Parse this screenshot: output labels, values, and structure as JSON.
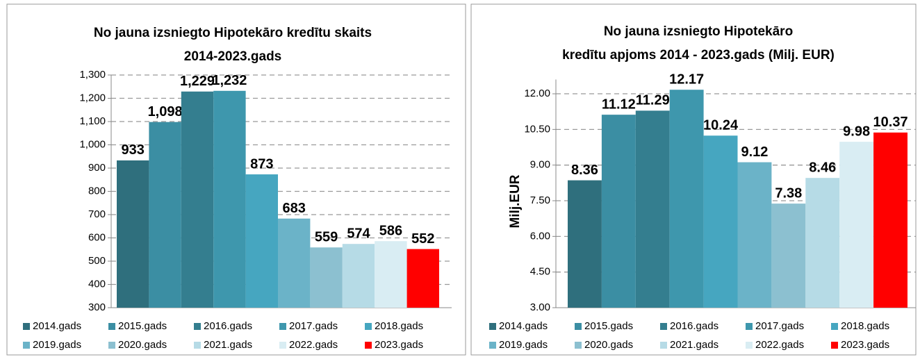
{
  "chart_data": [
    {
      "type": "bar",
      "title": [
        "No jauna izsniegto Hipotekāro kredītu skaits",
        "2014-2023.gads"
      ],
      "series": [
        {
          "name": "2014.gads",
          "color": "#2f6f7d",
          "values": [
            933
          ],
          "value_labels": [
            "933"
          ]
        },
        {
          "name": "2015.gads",
          "color": "#3b8ea3",
          "values": [
            1098
          ],
          "value_labels": [
            "1,098"
          ]
        },
        {
          "name": "2016.gads",
          "color": "#347e8f",
          "values": [
            1229
          ],
          "value_labels": [
            "1,229"
          ]
        },
        {
          "name": "2017.gads",
          "color": "#3e97ad",
          "values": [
            1232
          ],
          "value_labels": [
            "1,232"
          ]
        },
        {
          "name": "2018.gads",
          "color": "#46a6c0",
          "values": [
            873
          ],
          "value_labels": [
            "873"
          ]
        },
        {
          "name": "2019.gads",
          "color": "#6bb3c8",
          "values": [
            683
          ],
          "value_labels": [
            "683"
          ]
        },
        {
          "name": "2020.gads",
          "color": "#8cc0d0",
          "values": [
            559
          ],
          "value_labels": [
            "559"
          ]
        },
        {
          "name": "2021.gads",
          "color": "#b6dbe6",
          "values": [
            574
          ],
          "value_labels": [
            "574"
          ]
        },
        {
          "name": "2022.gads",
          "color": "#d9edf3",
          "values": [
            586
          ],
          "value_labels": [
            "586"
          ]
        },
        {
          "name": "2023.gads",
          "color": "#ff0000",
          "values": [
            552
          ],
          "value_labels": [
            "552"
          ]
        }
      ],
      "ylim": [
        300,
        1300
      ],
      "yticks": [
        300,
        400,
        500,
        600,
        700,
        800,
        900,
        {
          "value": 1000,
          "label": "1,000"
        },
        {
          "value": 1100,
          "label": "1,100"
        },
        {
          "value": 1200,
          "label": "1,200"
        },
        {
          "value": 1300,
          "label": "1,300"
        }
      ],
      "grid": true,
      "legend": "bottom"
    },
    {
      "type": "bar",
      "title": [
        "No jauna izsniegto Hipotekāro",
        "kredītu apjoms 2014 - 2023.gads (Milj. EUR)"
      ],
      "y_label": "Milj.EUR",
      "series": [
        {
          "name": "2014.gads",
          "color": "#2f6f7d",
          "values": [
            8.36
          ]
        },
        {
          "name": "2015.gads",
          "color": "#3b8ea3",
          "values": [
            11.12
          ]
        },
        {
          "name": "2016.gads",
          "color": "#347e8f",
          "values": [
            11.29
          ]
        },
        {
          "name": "2017.gads",
          "color": "#3e97ad",
          "values": [
            12.17
          ]
        },
        {
          "name": "2018.gads",
          "color": "#46a6c0",
          "values": [
            10.24
          ]
        },
        {
          "name": "2019.gads",
          "color": "#6bb3c8",
          "values": [
            9.12
          ]
        },
        {
          "name": "2020.gads",
          "color": "#8cc0d0",
          "values": [
            7.38
          ]
        },
        {
          "name": "2021.gads",
          "color": "#b6dbe6",
          "values": [
            8.46
          ]
        },
        {
          "name": "2022.gads",
          "color": "#d9edf3",
          "values": [
            9.98
          ]
        },
        {
          "name": "2023.gads",
          "color": "#ff0000",
          "values": [
            10.37
          ]
        }
      ],
      "ylim": [
        3,
        12.6
      ],
      "yticks": [
        {
          "value": 3,
          "label": "3.00"
        },
        {
          "value": 4.5,
          "label": "4.50"
        },
        {
          "value": 6,
          "label": "6.00"
        },
        {
          "value": 7.5,
          "label": "7.50"
        },
        {
          "value": 9,
          "label": "9.00"
        },
        {
          "value": 10.5,
          "label": "10.50"
        },
        {
          "value": 12,
          "label": "12.00"
        }
      ],
      "grid": true,
      "legend": "bottom"
    }
  ]
}
